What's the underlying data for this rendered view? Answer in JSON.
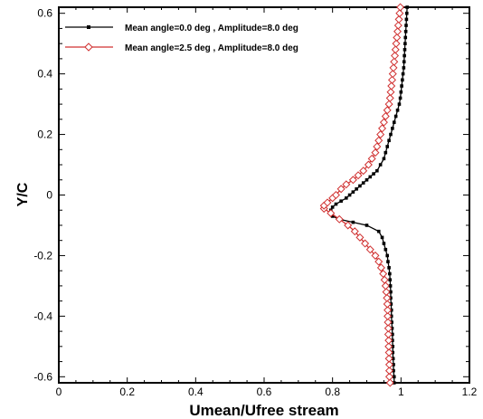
{
  "chart_data": {
    "type": "line",
    "xlabel": "Umean/Ufree stream",
    "ylabel": "Y/C",
    "xlim": [
      0,
      1.2
    ],
    "ylim": [
      -0.62,
      0.62
    ],
    "x_ticks": [
      0,
      0.2,
      0.4,
      0.6,
      0.8,
      1,
      1.2
    ],
    "x_tick_labels": [
      "0",
      "0.2",
      "0.4",
      "0.6",
      "0.8",
      "1",
      "1.2"
    ],
    "y_ticks": [
      -0.6,
      -0.4,
      -0.2,
      0,
      0.2,
      0.4,
      0.6
    ],
    "y_tick_labels": [
      "-0.6",
      "-0.4",
      "-0.2",
      "0",
      "0.2",
      "0.4",
      "0.6"
    ],
    "grid": false,
    "legend_position": "top-left",
    "series": [
      {
        "name": "Mean angle=0.0 deg , Amplitude=8.0 deg",
        "color": "#000000",
        "marker": "square",
        "points": [
          [
            0.98,
            -0.62
          ],
          [
            0.98,
            -0.6
          ],
          [
            0.978,
            -0.58
          ],
          [
            0.978,
            -0.56
          ],
          [
            0.977,
            -0.54
          ],
          [
            0.976,
            -0.52
          ],
          [
            0.976,
            -0.5
          ],
          [
            0.975,
            -0.48
          ],
          [
            0.975,
            -0.46
          ],
          [
            0.974,
            -0.44
          ],
          [
            0.973,
            -0.42
          ],
          [
            0.972,
            -0.4
          ],
          [
            0.972,
            -0.38
          ],
          [
            0.971,
            -0.36
          ],
          [
            0.97,
            -0.34
          ],
          [
            0.97,
            -0.32
          ],
          [
            0.969,
            -0.3
          ],
          [
            0.968,
            -0.28
          ],
          [
            0.967,
            -0.26
          ],
          [
            0.965,
            -0.24
          ],
          [
            0.962,
            -0.22
          ],
          [
            0.96,
            -0.2
          ],
          [
            0.955,
            -0.18
          ],
          [
            0.95,
            -0.16
          ],
          [
            0.945,
            -0.14
          ],
          [
            0.935,
            -0.12
          ],
          [
            0.9,
            -0.1
          ],
          [
            0.86,
            -0.09
          ],
          [
            0.82,
            -0.08
          ],
          [
            0.8,
            -0.07
          ],
          [
            0.795,
            -0.06
          ],
          [
            0.795,
            -0.05
          ],
          [
            0.8,
            -0.04
          ],
          [
            0.81,
            -0.03
          ],
          [
            0.825,
            -0.02
          ],
          [
            0.84,
            -0.01
          ],
          [
            0.85,
            0
          ],
          [
            0.86,
            0.01
          ],
          [
            0.87,
            0.02
          ],
          [
            0.88,
            0.03
          ],
          [
            0.89,
            0.04
          ],
          [
            0.9,
            0.05
          ],
          [
            0.91,
            0.06
          ],
          [
            0.92,
            0.07
          ],
          [
            0.93,
            0.08
          ],
          [
            0.94,
            0.1
          ],
          [
            0.95,
            0.12
          ],
          [
            0.955,
            0.14
          ],
          [
            0.96,
            0.16
          ],
          [
            0.965,
            0.18
          ],
          [
            0.97,
            0.2
          ],
          [
            0.975,
            0.22
          ],
          [
            0.98,
            0.24
          ],
          [
            0.985,
            0.26
          ],
          [
            0.99,
            0.28
          ],
          [
            0.995,
            0.3
          ],
          [
            0.998,
            0.32
          ],
          [
            1.0,
            0.34
          ],
          [
            1.002,
            0.36
          ],
          [
            1.004,
            0.38
          ],
          [
            1.006,
            0.4
          ],
          [
            1.008,
            0.42
          ],
          [
            1.009,
            0.44
          ],
          [
            1.01,
            0.46
          ],
          [
            1.011,
            0.48
          ],
          [
            1.012,
            0.5
          ],
          [
            1.013,
            0.52
          ],
          [
            1.014,
            0.54
          ],
          [
            1.015,
            0.56
          ],
          [
            1.016,
            0.58
          ],
          [
            1.017,
            0.6
          ],
          [
            1.018,
            0.62
          ]
        ]
      },
      {
        "name": "Mean angle=2.5 deg , Amplitude=8.0 deg",
        "color": "#d03030",
        "marker": "diamond",
        "points": [
          [
            0.968,
            -0.62
          ],
          [
            0.966,
            -0.6
          ],
          [
            0.966,
            -0.58
          ],
          [
            0.966,
            -0.56
          ],
          [
            0.965,
            -0.54
          ],
          [
            0.965,
            -0.52
          ],
          [
            0.964,
            -0.5
          ],
          [
            0.964,
            -0.48
          ],
          [
            0.963,
            -0.46
          ],
          [
            0.963,
            -0.44
          ],
          [
            0.962,
            -0.42
          ],
          [
            0.961,
            -0.4
          ],
          [
            0.961,
            -0.38
          ],
          [
            0.96,
            -0.36
          ],
          [
            0.959,
            -0.34
          ],
          [
            0.957,
            -0.32
          ],
          [
            0.955,
            -0.3
          ],
          [
            0.952,
            -0.28
          ],
          [
            0.948,
            -0.26
          ],
          [
            0.942,
            -0.24
          ],
          [
            0.935,
            -0.22
          ],
          [
            0.925,
            -0.2
          ],
          [
            0.91,
            -0.18
          ],
          [
            0.895,
            -0.16
          ],
          [
            0.88,
            -0.14
          ],
          [
            0.865,
            -0.12
          ],
          [
            0.845,
            -0.1
          ],
          [
            0.82,
            -0.08
          ],
          [
            0.795,
            -0.06
          ],
          [
            0.775,
            -0.045
          ],
          [
            0.775,
            -0.035
          ],
          [
            0.785,
            -0.025
          ],
          [
            0.8,
            -0.01
          ],
          [
            0.81,
            0.0
          ],
          [
            0.825,
            0.02
          ],
          [
            0.84,
            0.035
          ],
          [
            0.86,
            0.05
          ],
          [
            0.875,
            0.065
          ],
          [
            0.89,
            0.08
          ],
          [
            0.905,
            0.1
          ],
          [
            0.915,
            0.12
          ],
          [
            0.925,
            0.14
          ],
          [
            0.93,
            0.16
          ],
          [
            0.935,
            0.18
          ],
          [
            0.94,
            0.2
          ],
          [
            0.945,
            0.22
          ],
          [
            0.95,
            0.24
          ],
          [
            0.955,
            0.26
          ],
          [
            0.96,
            0.28
          ],
          [
            0.965,
            0.3
          ],
          [
            0.968,
            0.32
          ],
          [
            0.97,
            0.34
          ],
          [
            0.972,
            0.36
          ],
          [
            0.974,
            0.38
          ],
          [
            0.976,
            0.4
          ],
          [
            0.978,
            0.42
          ],
          [
            0.98,
            0.44
          ],
          [
            0.982,
            0.46
          ],
          [
            0.984,
            0.48
          ],
          [
            0.986,
            0.5
          ],
          [
            0.988,
            0.52
          ],
          [
            0.99,
            0.54
          ],
          [
            0.992,
            0.56
          ],
          [
            0.994,
            0.58
          ],
          [
            0.996,
            0.6
          ],
          [
            0.998,
            0.62
          ]
        ]
      }
    ]
  }
}
